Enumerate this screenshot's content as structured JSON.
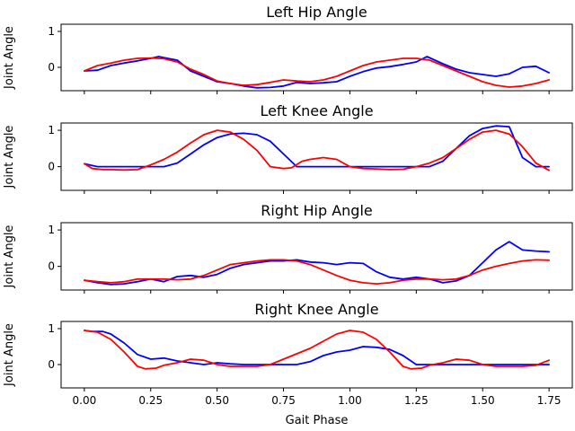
{
  "chart_data": [
    {
      "type": "line",
      "title": "Left Hip Angle",
      "ylabel": "Joint Angle",
      "xlabel": "",
      "xlim": [
        -0.0875,
        1.8375
      ],
      "ylim": [
        -0.65,
        1.2
      ],
      "xticks": [
        0.0,
        0.25,
        0.5,
        0.75,
        1.0,
        1.25,
        1.5,
        1.75
      ],
      "xtick_labels": [],
      "yticks": [
        0,
        1
      ],
      "ytick_labels": [
        "0",
        "1"
      ],
      "series": [
        {
          "color": "#0000ff",
          "x": [
            0.0,
            0.05,
            0.1,
            0.15,
            0.2,
            0.25,
            0.28,
            0.32,
            0.35,
            0.4,
            0.45,
            0.5,
            0.55,
            0.6,
            0.65,
            0.7,
            0.75,
            0.8,
            0.85,
            0.9,
            0.95,
            1.0,
            1.05,
            1.1,
            1.15,
            1.2,
            1.25,
            1.29,
            1.35,
            1.4,
            1.45,
            1.5,
            1.55,
            1.6,
            1.65,
            1.7,
            1.75
          ],
          "y": [
            -0.1,
            -0.08,
            0.05,
            0.12,
            0.18,
            0.25,
            0.3,
            0.24,
            0.2,
            -0.1,
            -0.25,
            -0.4,
            -0.45,
            -0.52,
            -0.57,
            -0.56,
            -0.52,
            -0.42,
            -0.45,
            -0.43,
            -0.4,
            -0.25,
            -0.12,
            -0.02,
            0.02,
            0.08,
            0.15,
            0.3,
            0.1,
            -0.05,
            -0.15,
            -0.2,
            -0.25,
            -0.18,
            0.0,
            0.03,
            -0.15
          ]
        },
        {
          "color": "#ff0000",
          "x": [
            0.0,
            0.05,
            0.1,
            0.15,
            0.2,
            0.25,
            0.3,
            0.35,
            0.4,
            0.45,
            0.5,
            0.55,
            0.6,
            0.65,
            0.7,
            0.75,
            0.8,
            0.85,
            0.9,
            0.95,
            1.0,
            1.05,
            1.1,
            1.15,
            1.2,
            1.25,
            1.3,
            1.35,
            1.4,
            1.45,
            1.5,
            1.55,
            1.6,
            1.65,
            1.7,
            1.75
          ],
          "y": [
            -0.1,
            0.05,
            0.12,
            0.2,
            0.25,
            0.26,
            0.24,
            0.15,
            -0.05,
            -0.2,
            -0.38,
            -0.45,
            -0.5,
            -0.48,
            -0.42,
            -0.35,
            -0.38,
            -0.4,
            -0.35,
            -0.25,
            -0.1,
            0.05,
            0.15,
            0.2,
            0.25,
            0.25,
            0.2,
            0.05,
            -0.1,
            -0.25,
            -0.4,
            -0.5,
            -0.55,
            -0.52,
            -0.45,
            -0.35
          ]
        }
      ]
    },
    {
      "type": "line",
      "title": "Left Knee Angle",
      "ylabel": "Joint Angle",
      "xlabel": "",
      "xlim": [
        -0.0875,
        1.8375
      ],
      "ylim": [
        -0.65,
        1.2
      ],
      "xticks": [
        0.0,
        0.25,
        0.5,
        0.75,
        1.0,
        1.25,
        1.5,
        1.75
      ],
      "xtick_labels": [],
      "yticks": [
        0,
        1
      ],
      "ytick_labels": [
        "0",
        "1"
      ],
      "series": [
        {
          "color": "#0000ff",
          "x": [
            0.0,
            0.05,
            0.1,
            0.15,
            0.2,
            0.25,
            0.3,
            0.35,
            0.4,
            0.45,
            0.5,
            0.55,
            0.6,
            0.65,
            0.7,
            0.75,
            0.8,
            0.85,
            0.9,
            0.95,
            1.0,
            1.05,
            1.1,
            1.15,
            1.2,
            1.25,
            1.3,
            1.35,
            1.4,
            1.45,
            1.5,
            1.55,
            1.6,
            1.65,
            1.7,
            1.75
          ],
          "y": [
            0.08,
            0.0,
            0.0,
            0.0,
            0.0,
            0.0,
            0.0,
            0.1,
            0.35,
            0.6,
            0.8,
            0.9,
            0.92,
            0.88,
            0.7,
            0.35,
            0.0,
            0.0,
            0.0,
            0.0,
            0.0,
            0.0,
            0.0,
            0.0,
            0.0,
            0.0,
            0.0,
            0.15,
            0.5,
            0.85,
            1.05,
            1.12,
            1.1,
            0.25,
            0.0,
            0.0
          ]
        },
        {
          "color": "#ff0000",
          "x": [
            0.0,
            0.03,
            0.07,
            0.1,
            0.15,
            0.2,
            0.25,
            0.3,
            0.35,
            0.4,
            0.45,
            0.5,
            0.55,
            0.6,
            0.65,
            0.7,
            0.75,
            0.78,
            0.82,
            0.85,
            0.9,
            0.95,
            1.0,
            1.05,
            1.1,
            1.15,
            1.2,
            1.25,
            1.3,
            1.35,
            1.4,
            1.45,
            1.5,
            1.55,
            1.6,
            1.65,
            1.7,
            1.75
          ],
          "y": [
            0.08,
            -0.05,
            -0.08,
            -0.08,
            -0.09,
            -0.08,
            0.05,
            0.2,
            0.4,
            0.65,
            0.88,
            1.0,
            0.95,
            0.75,
            0.45,
            0.0,
            -0.05,
            -0.03,
            0.15,
            0.2,
            0.25,
            0.2,
            0.0,
            -0.05,
            -0.06,
            -0.08,
            -0.07,
            0.0,
            0.1,
            0.25,
            0.5,
            0.75,
            0.95,
            1.0,
            0.9,
            0.55,
            0.1,
            -0.1
          ]
        }
      ]
    },
    {
      "type": "line",
      "title": "Right Hip Angle",
      "ylabel": "Joint Angle",
      "xlabel": "",
      "xlim": [
        -0.0875,
        1.8375
      ],
      "ylim": [
        -0.65,
        1.2
      ],
      "xticks": [
        0.0,
        0.25,
        0.5,
        0.75,
        1.0,
        1.25,
        1.5,
        1.75
      ],
      "xtick_labels": [],
      "yticks": [
        0,
        1
      ],
      "ytick_labels": [
        "0",
        "1"
      ],
      "series": [
        {
          "color": "#0000ff",
          "x": [
            0.0,
            0.05,
            0.1,
            0.15,
            0.2,
            0.25,
            0.3,
            0.35,
            0.4,
            0.45,
            0.5,
            0.55,
            0.6,
            0.65,
            0.7,
            0.75,
            0.8,
            0.85,
            0.9,
            0.95,
            1.0,
            1.05,
            1.1,
            1.15,
            1.2,
            1.25,
            1.3,
            1.35,
            1.4,
            1.45,
            1.5,
            1.55,
            1.6,
            1.65,
            1.7,
            1.75
          ],
          "y": [
            -0.38,
            -0.45,
            -0.5,
            -0.48,
            -0.42,
            -0.35,
            -0.42,
            -0.28,
            -0.25,
            -0.3,
            -0.22,
            -0.05,
            0.05,
            0.1,
            0.15,
            0.15,
            0.18,
            0.12,
            0.1,
            0.05,
            0.1,
            0.08,
            -0.15,
            -0.3,
            -0.35,
            -0.3,
            -0.35,
            -0.45,
            -0.4,
            -0.25,
            0.1,
            0.45,
            0.68,
            0.45,
            0.42,
            0.4
          ]
        },
        {
          "color": "#ff0000",
          "x": [
            0.0,
            0.05,
            0.1,
            0.15,
            0.2,
            0.25,
            0.3,
            0.35,
            0.4,
            0.45,
            0.5,
            0.55,
            0.6,
            0.65,
            0.7,
            0.75,
            0.8,
            0.85,
            0.9,
            0.95,
            1.0,
            1.05,
            1.1,
            1.15,
            1.2,
            1.25,
            1.3,
            1.35,
            1.4,
            1.45,
            1.5,
            1.55,
            1.6,
            1.65,
            1.7,
            1.75
          ],
          "y": [
            -0.38,
            -0.42,
            -0.45,
            -0.42,
            -0.35,
            -0.35,
            -0.35,
            -0.37,
            -0.35,
            -0.25,
            -0.1,
            0.05,
            0.1,
            0.15,
            0.18,
            0.18,
            0.15,
            0.05,
            -0.1,
            -0.25,
            -0.38,
            -0.45,
            -0.48,
            -0.45,
            -0.38,
            -0.35,
            -0.35,
            -0.37,
            -0.35,
            -0.25,
            -0.1,
            0.0,
            0.08,
            0.15,
            0.18,
            0.17
          ]
        }
      ]
    },
    {
      "type": "line",
      "title": "Right Knee Angle",
      "ylabel": "Joint Angle",
      "xlabel": "Gait Phase",
      "xlim": [
        -0.0875,
        1.8375
      ],
      "ylim": [
        -0.65,
        1.2
      ],
      "xticks": [
        0.0,
        0.25,
        0.5,
        0.75,
        1.0,
        1.25,
        1.5,
        1.75
      ],
      "xtick_labels": [
        "0.00",
        "0.25",
        "0.50",
        "0.75",
        "1.00",
        "1.25",
        "1.50",
        "1.75"
      ],
      "yticks": [
        0,
        1
      ],
      "ytick_labels": [
        "0",
        "1"
      ],
      "series": [
        {
          "color": "#0000ff",
          "x": [
            0.0,
            0.03,
            0.07,
            0.1,
            0.15,
            0.2,
            0.25,
            0.3,
            0.35,
            0.4,
            0.45,
            0.5,
            0.55,
            0.6,
            0.65,
            0.7,
            0.75,
            0.8,
            0.85,
            0.9,
            0.95,
            1.0,
            1.05,
            1.1,
            1.15,
            1.2,
            1.25,
            1.3,
            1.35,
            1.4,
            1.45,
            1.5,
            1.55,
            1.6,
            1.65,
            1.7,
            1.75
          ],
          "y": [
            0.95,
            0.92,
            0.92,
            0.85,
            0.6,
            0.28,
            0.15,
            0.18,
            0.1,
            0.05,
            0.0,
            0.05,
            0.02,
            0.0,
            0.0,
            0.0,
            0.0,
            0.0,
            0.08,
            0.25,
            0.35,
            0.4,
            0.5,
            0.48,
            0.42,
            0.25,
            0.0,
            0.0,
            0.0,
            0.0,
            0.0,
            0.0,
            0.0,
            0.0,
            0.0,
            0.0,
            0.0
          ]
        },
        {
          "color": "#ff0000",
          "x": [
            0.0,
            0.05,
            0.1,
            0.15,
            0.2,
            0.23,
            0.27,
            0.3,
            0.35,
            0.4,
            0.45,
            0.5,
            0.55,
            0.6,
            0.65,
            0.7,
            0.75,
            0.8,
            0.85,
            0.9,
            0.95,
            1.0,
            1.05,
            1.1,
            1.15,
            1.2,
            1.23,
            1.27,
            1.3,
            1.35,
            1.4,
            1.45,
            1.5,
            1.55,
            1.6,
            1.65,
            1.7,
            1.75
          ],
          "y": [
            0.95,
            0.9,
            0.7,
            0.35,
            -0.05,
            -0.12,
            -0.1,
            -0.02,
            0.05,
            0.15,
            0.12,
            0.0,
            -0.05,
            -0.05,
            -0.05,
            0.0,
            0.15,
            0.3,
            0.45,
            0.65,
            0.85,
            0.95,
            0.9,
            0.7,
            0.35,
            -0.05,
            -0.12,
            -0.1,
            -0.02,
            0.05,
            0.15,
            0.12,
            0.0,
            -0.05,
            -0.05,
            -0.05,
            -0.02,
            0.12
          ]
        }
      ]
    }
  ]
}
